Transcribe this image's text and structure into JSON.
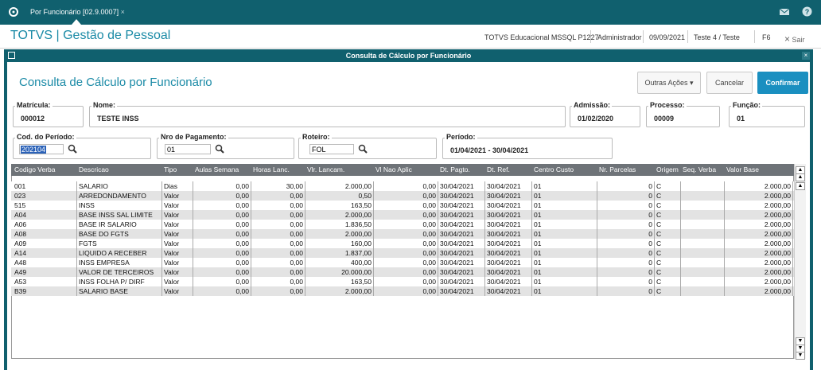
{
  "topbar": {
    "tab": "Por Funcionário [02.9.0007]"
  },
  "header": {
    "app_title": "TOTVS | Gestão de Pessoal",
    "environment": "TOTVS Educacional MSSQL P1227",
    "user": "Administrador",
    "date": "09/09/2021",
    "company": "Teste 4 / Teste",
    "shortcut": "F6",
    "exit": "Sair"
  },
  "window": {
    "title": "Consulta de Cálculo por Funcionário",
    "heading": "Consulta de Cálculo por Funcionário",
    "buttons": [
      "Outras Ações",
      "Cancelar",
      "Confirmar"
    ]
  },
  "fields": [
    {
      "label": "Matrícula:",
      "value": "000012"
    },
    {
      "label": "Nome:",
      "value": "TESTE INSS"
    },
    {
      "label": "Admissão:",
      "value": "01/02/2020"
    },
    {
      "label": "Processo:",
      "value": "00009"
    },
    {
      "label": "Função:",
      "value": "01"
    },
    {
      "label": "Cod. do Período:",
      "value": "202104"
    },
    {
      "label": "Nro de Pagamento:",
      "value": "01"
    },
    {
      "label": "Roteiro:",
      "value": "FOL"
    },
    {
      "label": "Período:",
      "value": "01/04/2021 - 30/04/2021"
    }
  ],
  "table": {
    "columns": [
      "Codigo Verba",
      "Descricao",
      "Tipo",
      "Aulas Semana",
      "Horas Lanc.",
      "Vlr. Lancam.",
      "Vl Nao Aplic",
      "Dt. Pagto.",
      "Dt. Ref.",
      "Centro Custo",
      "Nr. Parcelas",
      "Origem",
      "Seq. Verba",
      "Valor Base"
    ],
    "rows": [
      [
        "001",
        "SALARIO",
        "Dias",
        "0,00",
        "30,00",
        "2.000,00",
        "0,00",
        "30/04/2021",
        "30/04/2021",
        "01",
        "0",
        "C",
        null,
        "2.000,00"
      ],
      [
        "023",
        "ARREDONDAMENTO",
        "Valor",
        "0,00",
        "0,00",
        "0,50",
        "0,00",
        "30/04/2021",
        "30/04/2021",
        "01",
        "0",
        "C",
        null,
        "2.000,00"
      ],
      [
        "515",
        "INSS",
        "Valor",
        "0,00",
        "0,00",
        "163,50",
        "0,00",
        "30/04/2021",
        "30/04/2021",
        "01",
        "0",
        "C",
        null,
        "2.000,00"
      ],
      [
        "A04",
        "BASE INSS SAL LIMITE",
        "Valor",
        "0,00",
        "0,00",
        "2.000,00",
        "0,00",
        "30/04/2021",
        "30/04/2021",
        "01",
        "0",
        "C",
        null,
        "2.000,00"
      ],
      [
        "A06",
        "BASE IR SALARIO",
        "Valor",
        "0,00",
        "0,00",
        "1.836,50",
        "0,00",
        "30/04/2021",
        "30/04/2021",
        "01",
        "0",
        "C",
        null,
        "2.000,00"
      ],
      [
        "A08",
        "BASE DO FGTS",
        "Valor",
        "0,00",
        "0,00",
        "2.000,00",
        "0,00",
        "30/04/2021",
        "30/04/2021",
        "01",
        "0",
        "C",
        null,
        "2.000,00"
      ],
      [
        "A09",
        "FGTS",
        "Valor",
        "0,00",
        "0,00",
        "160,00",
        "0,00",
        "30/04/2021",
        "30/04/2021",
        "01",
        "0",
        "C",
        null,
        "2.000,00"
      ],
      [
        "A14",
        "LIQUIDO A RECEBER",
        "Valor",
        "0,00",
        "0,00",
        "1.837,00",
        "0,00",
        "30/04/2021",
        "30/04/2021",
        "01",
        "0",
        "C",
        null,
        "2.000,00"
      ],
      [
        "A48",
        "INSS EMPRESA",
        "Valor",
        "0,00",
        "0,00",
        "400,00",
        "0,00",
        "30/04/2021",
        "30/04/2021",
        "01",
        "0",
        "C",
        null,
        "2.000,00"
      ],
      [
        "A49",
        "VALOR DE TERCEIROS",
        "Valor",
        "0,00",
        "0,00",
        "20.000,00",
        "0,00",
        "30/04/2021",
        "30/04/2021",
        "01",
        "0",
        "C",
        null,
        "2.000,00"
      ],
      [
        "A53",
        "INSS FOLHA P/ DIRF",
        "Valor",
        "0,00",
        "0,00",
        "163,50",
        "0,00",
        "30/04/2021",
        "30/04/2021",
        "01",
        "0",
        "C",
        null,
        "2.000,00"
      ],
      [
        "B39",
        "SALARIO BASE",
        "Valor",
        "0,00",
        "0,00",
        "2.000,00",
        "0,00",
        "30/04/2021",
        "30/04/2021",
        "01",
        "0",
        "C",
        null,
        "2.000,00"
      ]
    ]
  }
}
